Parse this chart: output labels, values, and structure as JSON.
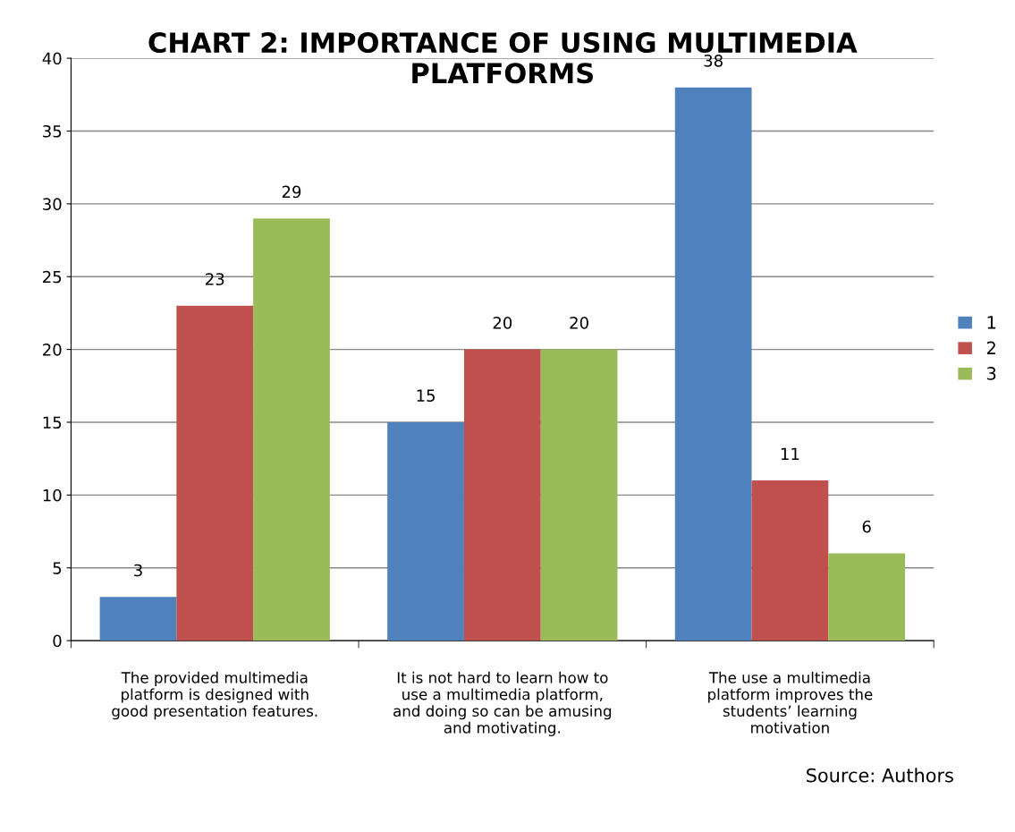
{
  "chart_data": {
    "type": "bar",
    "title": "CHART 2: IMPORTANCE OF USING MULTIMEDIA\nPLATFORMS",
    "categories": [
      "The provided multimedia\nplatform is designed with\ngood presentation features.",
      "It is not hard to learn how to\nuse a multimedia platform,\nand doing so can be amusing\nand motivating.",
      "The use a multimedia\nplatform improves the\nstudents’ learning\nmotivation"
    ],
    "series": [
      {
        "name": "1",
        "color": "#4f81bd",
        "values": [
          3,
          15,
          38
        ]
      },
      {
        "name": "2",
        "color": "#c0504d",
        "values": [
          23,
          20,
          11
        ]
      },
      {
        "name": "3",
        "color": "#9bbb59",
        "values": [
          29,
          20,
          6
        ]
      }
    ],
    "ylim": [
      0,
      40
    ],
    "yticks": [
      0,
      5,
      10,
      15,
      20,
      25,
      30,
      35,
      40
    ],
    "grid": "y",
    "legend": "right",
    "data_labels": true,
    "annotations": [
      "Source: Authors"
    ]
  }
}
